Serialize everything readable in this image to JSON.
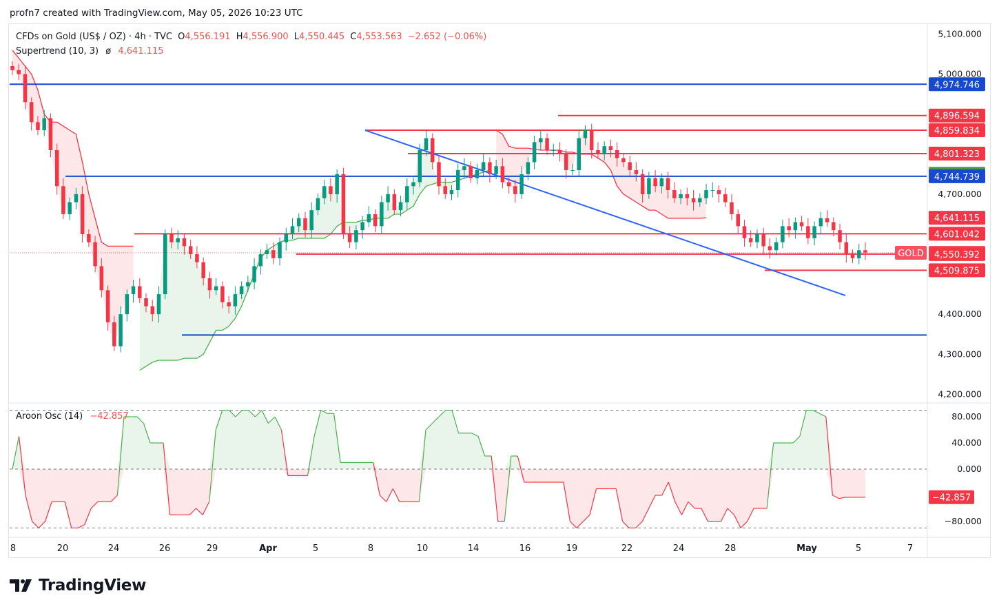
{
  "header": {
    "author": "profn7 created with TradingView.com, May 05, 2026 10:23 UTC"
  },
  "legend": {
    "symbol": "CFDs on Gold (US$ / OZ) · 4h · TVC",
    "o_label": "O",
    "o": "4,556.191",
    "h_label": "H",
    "h": "4,556.900",
    "l_label": "L",
    "l": "4,550.445",
    "c_label": "C",
    "c": "4,553.563",
    "change": "−2.652 (−0.06%)",
    "indicator": "Supertrend (10, 3)",
    "indicator_sym": "ø",
    "indicator_value": "4,641.115"
  },
  "osc_legend": {
    "name": "Aroon Osc (14)",
    "value": "−42.857"
  },
  "footer": {
    "brand": "TradingView"
  },
  "colors": {
    "up": "#089981",
    "down": "#f23645",
    "supertrend_up": "#4caf50",
    "supertrend_down": "#f23645",
    "blue_line": "#1848cc",
    "red_line": "#f23645",
    "trend_line": "#2962ff"
  },
  "chart_data": {
    "type": "candlestick",
    "symbol": "GOLD",
    "timeframe": "4h",
    "price_axis": {
      "ylim": [
        4180,
        5125
      ],
      "ticks": [
        "5,100.000",
        "5,000.000",
        "4,700.000",
        "4,400.000",
        "4,300.000",
        "4,200.000"
      ],
      "tick_values": [
        5100,
        5000,
        4700,
        4400,
        4300,
        4200
      ]
    },
    "time_axis": {
      "labels": [
        "8",
        "20",
        "24",
        "26",
        "29",
        "Apr",
        "5",
        "8",
        "10",
        "14",
        "16",
        "19",
        "22",
        "24",
        "28",
        "May",
        "5",
        "7"
      ],
      "bold": [
        "Apr",
        "May"
      ]
    },
    "horizontal_levels": [
      {
        "label": "4,974.746",
        "value": 4974.746,
        "color": "#1848cc"
      },
      {
        "label": "4,896.594",
        "value": 4896.594,
        "color": "#f23645"
      },
      {
        "label": "4,859.834",
        "value": 4859.834,
        "color": "#f23645"
      },
      {
        "label": "4,801.323",
        "value": 4801.323,
        "color": "#f23645"
      },
      {
        "label": "4,744.739",
        "value": 4744.739,
        "color": "#1848cc"
      },
      {
        "label": "4,601.042",
        "value": 4601.042,
        "color": "#f23645"
      },
      {
        "label": "4,550.392",
        "value": 4550.392,
        "color": "#f23645"
      },
      {
        "label": "4,509.875",
        "value": 4509.875,
        "color": "#f23645"
      },
      {
        "label": "4,347.982",
        "value": 4347.982,
        "color": "#1848cc"
      }
    ],
    "price_tags": [
      {
        "label": "4,974.746",
        "value": 4974.746,
        "color": "#1848cc"
      },
      {
        "label": "4,896.594",
        "value": 4896.594,
        "color": "#f23645"
      },
      {
        "label": "4,859.834",
        "value": 4859.834,
        "color": "#f23645"
      },
      {
        "label": "4,801.323",
        "value": 4801.323,
        "color": "#f23645"
      },
      {
        "label": "4,750.980",
        "value": 4750.98,
        "color": "#43a047"
      },
      {
        "label": "4,744.739",
        "value": 4744.739,
        "color": "#1848cc"
      },
      {
        "label": "4,641.115",
        "value": 4641.115,
        "color": "#f23645"
      },
      {
        "label": "4,601.042",
        "value": 4601.042,
        "color": "#f23645"
      },
      {
        "label": "4,553.563",
        "value": 4553.563,
        "color": "#f7525f"
      },
      {
        "label": "4,550.392",
        "value": 4550.392,
        "color": "#f23645"
      },
      {
        "label": "4,509.875",
        "value": 4509.875,
        "color": "#f23645"
      }
    ],
    "last_price": {
      "symbol_tag": "GOLD",
      "value": 4553.563
    },
    "trendline": {
      "from": 4859.834,
      "to": 4447
    },
    "closes": [
      5010,
      5000,
      4930,
      4880,
      4860,
      4890,
      4810,
      4720,
      4650,
      4680,
      4700,
      4600,
      4580,
      4520,
      4460,
      4380,
      4320,
      4400,
      4450,
      4470,
      4440,
      4420,
      4400,
      4450,
      4600,
      4580,
      4590,
      4570,
      4550,
      4530,
      4490,
      4460,
      4470,
      4430,
      4420,
      4450,
      4470,
      4480,
      4520,
      4550,
      4560,
      4540,
      4580,
      4600,
      4620,
      4640,
      4610,
      4660,
      4690,
      4720,
      4700,
      4750,
      4600,
      4580,
      4610,
      4630,
      4650,
      4620,
      4680,
      4700,
      4660,
      4680,
      4720,
      4730,
      4810,
      4840,
      4780,
      4720,
      4700,
      4710,
      4760,
      4770,
      4740,
      4760,
      4780,
      4750,
      4770,
      4730,
      4720,
      4700,
      4750,
      4780,
      4830,
      4840,
      4810,
      4810,
      4800,
      4760,
      4760,
      4840,
      4860,
      4810,
      4800,
      4820,
      4810,
      4790,
      4780,
      4760,
      4750,
      4700,
      4740,
      4720,
      4740,
      4710,
      4690,
      4700,
      4690,
      4680,
      4690,
      4710,
      4710,
      4700,
      4680,
      4650,
      4620,
      4590,
      4580,
      4600,
      4570,
      4560,
      4580,
      4620,
      4610,
      4630,
      4620,
      4590,
      4620,
      4640,
      4630,
      4610,
      4580,
      4550,
      4540,
      4560,
      4554
    ],
    "supertrend": {
      "value": 4641.115,
      "segments": [
        {
          "dir": "down",
          "values": [
            5060,
            5040,
            5020,
            5000,
            4960,
            4900,
            4880,
            4880,
            4870,
            4860,
            4850,
            4780,
            4700,
            4640,
            4580,
            4570,
            4570,
            4570,
            4570,
            4570
          ]
        },
        {
          "dir": "up",
          "values": [
            4260,
            4270,
            4280,
            4285,
            4285,
            4285,
            4285,
            4290,
            4290,
            4290,
            4300,
            4330,
            4360,
            4360,
            4370,
            4390,
            4420,
            4460,
            4500,
            4540,
            4560,
            4570,
            4580,
            4585,
            4585,
            4590,
            4590,
            4590,
            4590,
            4590,
            4600,
            4620,
            4630,
            4630,
            4630,
            4635,
            4635,
            4640,
            4640,
            4640,
            4650,
            4650,
            4660,
            4670,
            4700,
            4720,
            4725,
            4730,
            4730,
            4730,
            4735,
            4740,
            4745,
            4750,
            4755,
            4760
          ]
        },
        {
          "dir": "down",
          "values": [
            4860,
            4850,
            4820,
            4815,
            4815,
            4815,
            4812,
            4810,
            4810,
            4810,
            4810,
            4805,
            4805,
            4800,
            4800,
            4800,
            4790,
            4780,
            4760,
            4720,
            4700,
            4690,
            4680,
            4670,
            4660,
            4660,
            4650,
            4640,
            4640,
            4640,
            4640,
            4640,
            4640,
            4641
          ]
        }
      ]
    },
    "aroon_osc": {
      "name": "Aroon Osc (14)",
      "value": -42.857,
      "ylim": [
        -100,
        100
      ],
      "ticks": [
        "80.000",
        "40.000",
        "0.000",
        "−80.000"
      ],
      "tick_values": [
        80,
        40,
        0,
        -80
      ],
      "dashed_levels": [
        90,
        0,
        -90
      ],
      "values": [
        0,
        50,
        -40,
        -80,
        -90,
        -80,
        -50,
        -50,
        -50,
        -90,
        -90,
        -85,
        -60,
        -50,
        -50,
        -50,
        -40,
        80,
        80,
        80,
        70,
        40,
        40,
        40,
        -70,
        -70,
        -70,
        -70,
        -60,
        -70,
        -50,
        60,
        90,
        90,
        80,
        90,
        90,
        80,
        90,
        70,
        80,
        60,
        -10,
        -10,
        -10,
        -10,
        50,
        90,
        85,
        85,
        10,
        10,
        10,
        10,
        10,
        10,
        -40,
        -50,
        -30,
        -50,
        -50,
        -50,
        -50,
        60,
        70,
        80,
        90,
        90,
        55,
        55,
        55,
        50,
        20,
        20,
        -80,
        -80,
        20,
        20,
        -20,
        -20,
        -20,
        -20,
        -20,
        -20,
        -20,
        -80,
        -90,
        -80,
        -70,
        -30,
        -30,
        -30,
        -30,
        -80,
        -90,
        -90,
        -80,
        -60,
        -40,
        -40,
        -20,
        -50,
        -70,
        -50,
        -60,
        -60,
        -80,
        -80,
        -80,
        -60,
        -70,
        -90,
        -80,
        -60,
        -60,
        -60,
        40,
        40,
        40,
        40,
        50,
        90,
        90,
        85,
        80,
        -40,
        -45,
        -43,
        -43,
        -43,
        -42.857
      ]
    }
  }
}
